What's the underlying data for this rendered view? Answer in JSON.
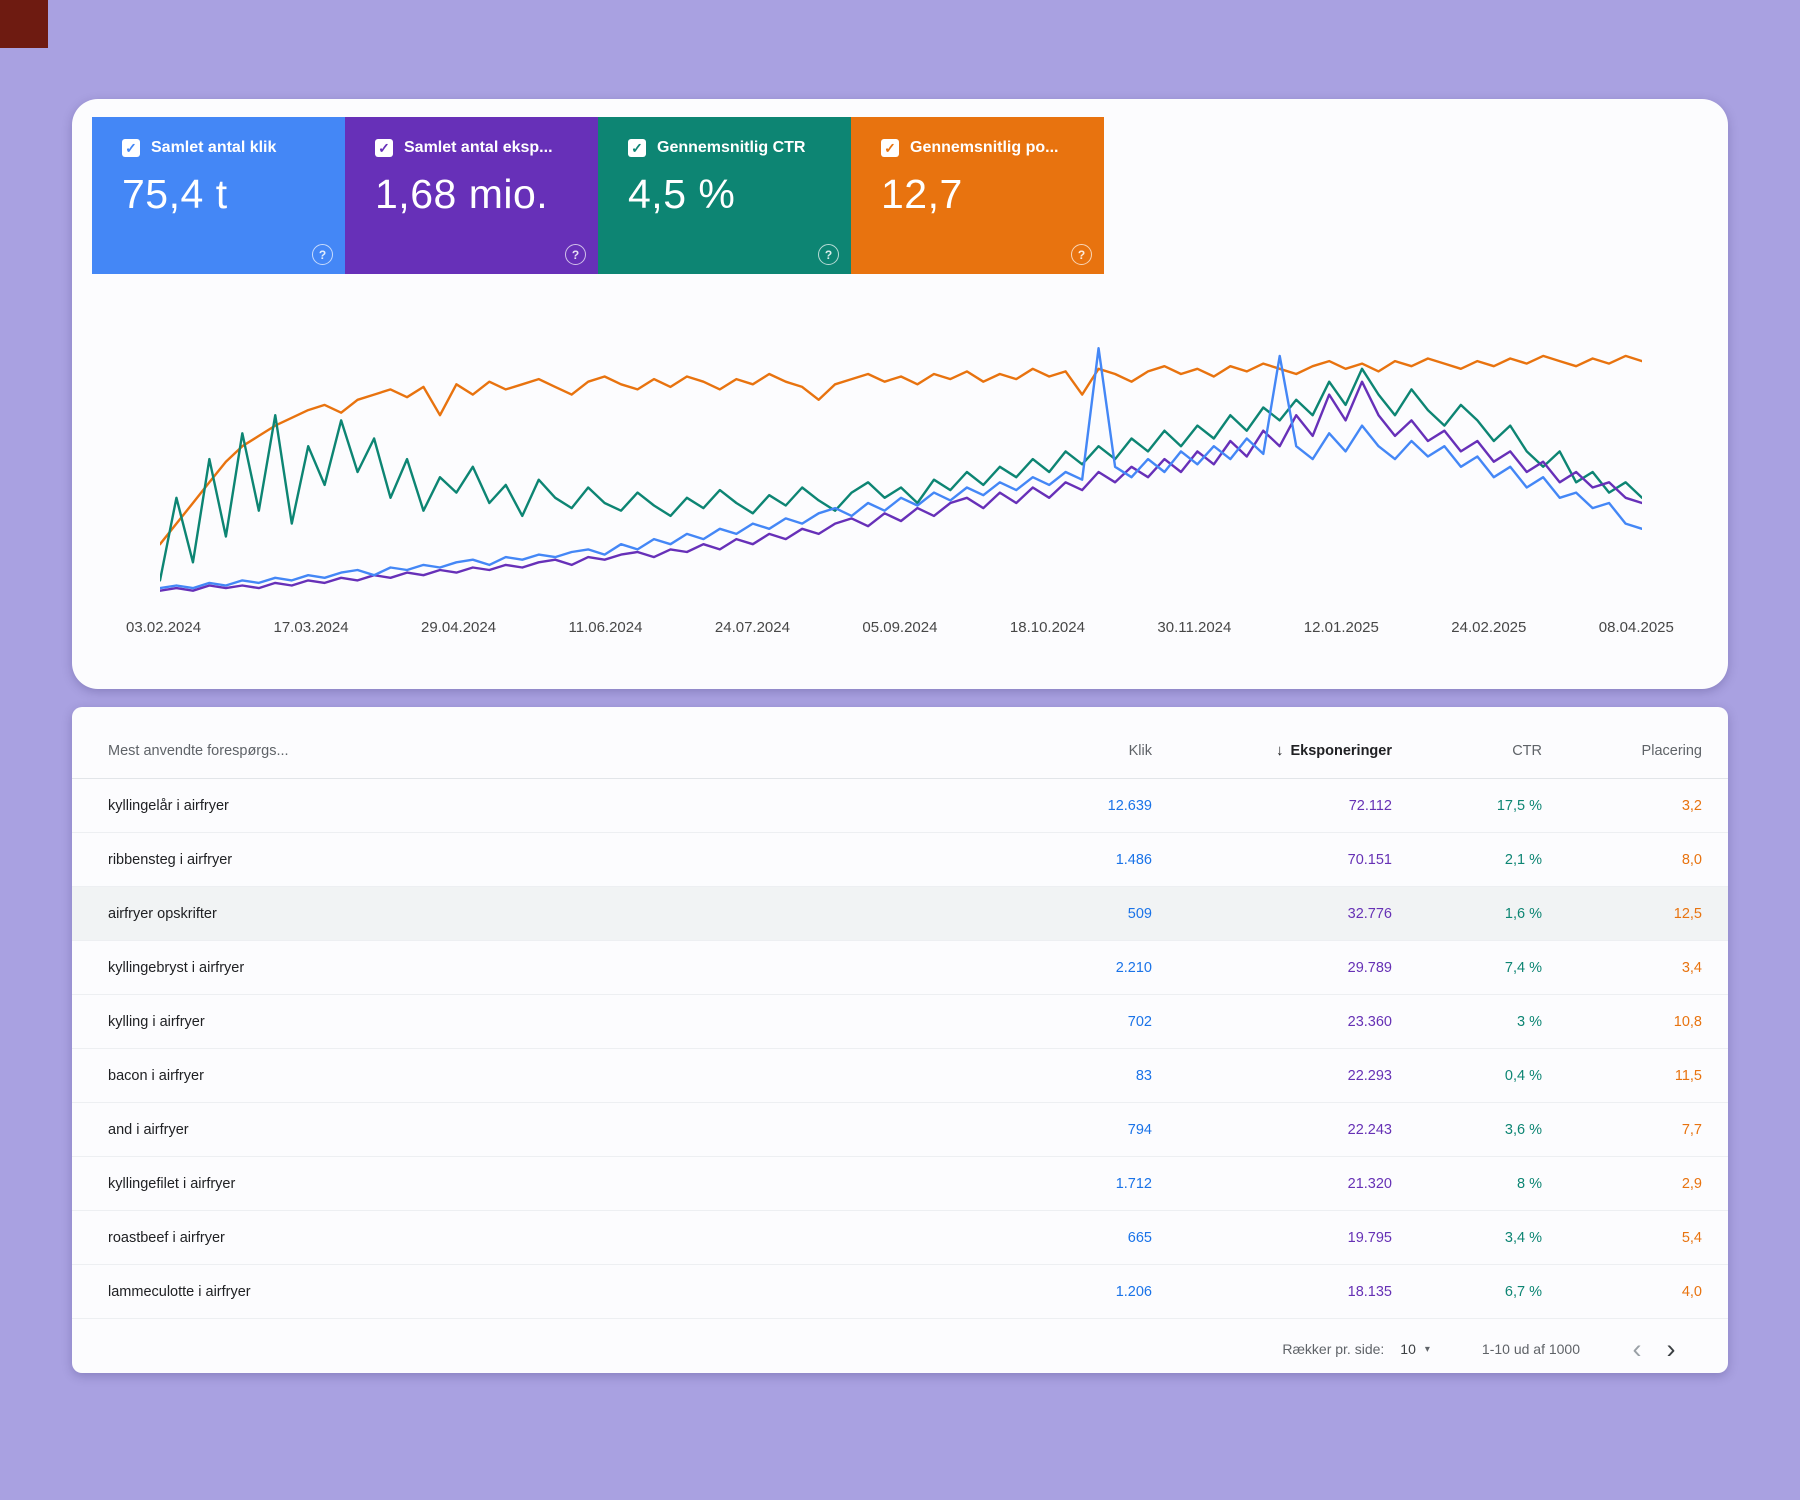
{
  "page": {
    "background": "#a9a1e1"
  },
  "icons": {
    "check": "✓",
    "help": "?",
    "sort_down": "↓",
    "caret": "▾",
    "chevron_left": "‹",
    "chevron_right": "›"
  },
  "metrics": {
    "cards": [
      {
        "label": "Samlet antal klik",
        "value": "75,4 t",
        "color": "#4487f6",
        "checked": true
      },
      {
        "label": "Samlet antal eksp...",
        "value": "1,68 mio.",
        "color": "#6730b8",
        "checked": true
      },
      {
        "label": "Gennemsnitlig CTR",
        "value": "4,5 %",
        "color": "#0d8573",
        "checked": true
      },
      {
        "label": "Gennemsnitlig po...",
        "value": "12,7",
        "color": "#e8730f",
        "checked": true
      }
    ]
  },
  "chart_data": {
    "type": "line",
    "title": "",
    "xlabel": "",
    "ylabel": "",
    "grid": false,
    "legend_position": "none",
    "values_unit": "percent_of_chart_height_estimated_from_pixels",
    "x_labels": [
      "03.02.2024",
      "17.03.2024",
      "29.04.2024",
      "11.06.2024",
      "24.07.2024",
      "05.09.2024",
      "18.10.2024",
      "30.11.2024",
      "12.01.2025",
      "24.02.2025",
      "08.04.2025"
    ],
    "series": [
      {
        "name": "Gennemsnitlig position",
        "color": "#e8730f",
        "values": [
          22,
          30,
          38,
          46,
          54,
          60,
          64,
          68,
          71,
          74,
          76,
          73,
          78,
          80,
          82,
          79,
          83,
          72,
          84,
          80,
          85,
          82,
          84,
          86,
          83,
          80,
          85,
          87,
          84,
          82,
          86,
          83,
          87,
          85,
          82,
          86,
          84,
          88,
          85,
          83,
          78,
          84,
          86,
          88,
          85,
          87,
          84,
          88,
          86,
          89,
          85,
          88,
          86,
          90,
          87,
          89,
          80,
          90,
          88,
          85,
          89,
          91,
          88,
          90,
          87,
          91,
          89,
          92,
          90,
          88,
          91,
          93,
          90,
          92,
          89,
          93,
          91,
          94,
          92,
          90,
          93,
          91,
          94,
          92,
          95,
          93,
          91,
          94,
          92,
          95,
          93
        ]
      },
      {
        "name": "Gennemsnitlig CTR",
        "color": "#0d8573",
        "values": [
          8,
          40,
          15,
          55,
          25,
          65,
          35,
          72,
          30,
          60,
          45,
          70,
          50,
          63,
          40,
          55,
          35,
          48,
          42,
          52,
          38,
          45,
          33,
          47,
          40,
          36,
          44,
          38,
          35,
          42,
          37,
          33,
          40,
          36,
          43,
          38,
          34,
          41,
          37,
          44,
          39,
          35,
          42,
          46,
          40,
          44,
          38,
          47,
          43,
          50,
          45,
          52,
          48,
          55,
          50,
          58,
          53,
          60,
          55,
          63,
          58,
          66,
          60,
          68,
          63,
          72,
          66,
          75,
          70,
          78,
          72,
          85,
          76,
          90,
          80,
          72,
          82,
          74,
          68,
          76,
          70,
          62,
          68,
          58,
          52,
          58,
          46,
          50,
          42,
          46,
          40
        ]
      },
      {
        "name": "Samlet antal eksponeringer",
        "color": "#6730b8",
        "values": [
          4,
          5,
          4,
          6,
          5,
          6,
          5,
          7,
          6,
          8,
          7,
          9,
          8,
          10,
          9,
          11,
          10,
          12,
          11,
          13,
          12,
          14,
          13,
          15,
          16,
          14,
          17,
          16,
          18,
          19,
          17,
          20,
          19,
          22,
          20,
          24,
          22,
          26,
          24,
          28,
          26,
          30,
          32,
          29,
          34,
          31,
          36,
          33,
          38,
          40,
          36,
          42,
          38,
          44,
          40,
          46,
          43,
          50,
          46,
          52,
          48,
          55,
          50,
          58,
          53,
          62,
          56,
          66,
          60,
          72,
          64,
          80,
          70,
          85,
          72,
          64,
          70,
          62,
          66,
          58,
          62,
          54,
          58,
          50,
          54,
          46,
          50,
          44,
          46,
          40,
          38
        ]
      },
      {
        "name": "Samlet antal klik",
        "color": "#4487f6",
        "values": [
          5,
          6,
          5,
          7,
          6,
          8,
          7,
          9,
          8,
          10,
          9,
          11,
          12,
          10,
          13,
          12,
          14,
          13,
          15,
          16,
          14,
          17,
          16,
          18,
          17,
          19,
          20,
          18,
          22,
          20,
          24,
          22,
          26,
          24,
          28,
          26,
          30,
          28,
          32,
          30,
          34,
          36,
          33,
          38,
          35,
          40,
          37,
          42,
          39,
          44,
          41,
          46,
          43,
          48,
          45,
          50,
          47,
          98,
          52,
          48,
          55,
          50,
          58,
          53,
          60,
          55,
          63,
          57,
          95,
          60,
          55,
          65,
          58,
          68,
          60,
          55,
          62,
          56,
          60,
          52,
          56,
          48,
          52,
          44,
          48,
          40,
          42,
          36,
          38,
          30,
          28
        ]
      }
    ]
  },
  "table": {
    "columns": {
      "query": "Mest anvendte forespørgs...",
      "clicks": "Klik",
      "impressions": "Eksponeringer",
      "ctr": "CTR",
      "position": "Placering"
    },
    "sorted_by": "Eksponeringer",
    "rows": [
      {
        "query": "kyllingelår i airfryer",
        "clicks": "12.639",
        "impressions": "72.112",
        "ctr": "17,5 %",
        "position": "3,2"
      },
      {
        "query": "ribbensteg i airfryer",
        "clicks": "1.486",
        "impressions": "70.151",
        "ctr": "2,1 %",
        "position": "8,0"
      },
      {
        "query": "airfryer opskrifter",
        "clicks": "509",
        "impressions": "32.776",
        "ctr": "1,6 %",
        "position": "12,5"
      },
      {
        "query": "kyllingebryst i airfryer",
        "clicks": "2.210",
        "impressions": "29.789",
        "ctr": "7,4 %",
        "position": "3,4"
      },
      {
        "query": "kylling i airfryer",
        "clicks": "702",
        "impressions": "23.360",
        "ctr": "3 %",
        "position": "10,8"
      },
      {
        "query": "bacon i airfryer",
        "clicks": "83",
        "impressions": "22.293",
        "ctr": "0,4 %",
        "position": "11,5"
      },
      {
        "query": "and i airfryer",
        "clicks": "794",
        "impressions": "22.243",
        "ctr": "3,6 %",
        "position": "7,7"
      },
      {
        "query": "kyllingefilet i airfryer",
        "clicks": "1.712",
        "impressions": "21.320",
        "ctr": "8 %",
        "position": "2,9"
      },
      {
        "query": "roastbeef i airfryer",
        "clicks": "665",
        "impressions": "19.795",
        "ctr": "3,4 %",
        "position": "5,4"
      },
      {
        "query": "lammeculotte i airfryer",
        "clicks": "1.206",
        "impressions": "18.135",
        "ctr": "6,7 %",
        "position": "4,0"
      }
    ],
    "highlighted_row_index": 2,
    "footer": {
      "rows_per_page_label": "Rækker pr. side:",
      "rows_per_page_value": "10",
      "range_label": "1-10 ud af 1000"
    }
  }
}
